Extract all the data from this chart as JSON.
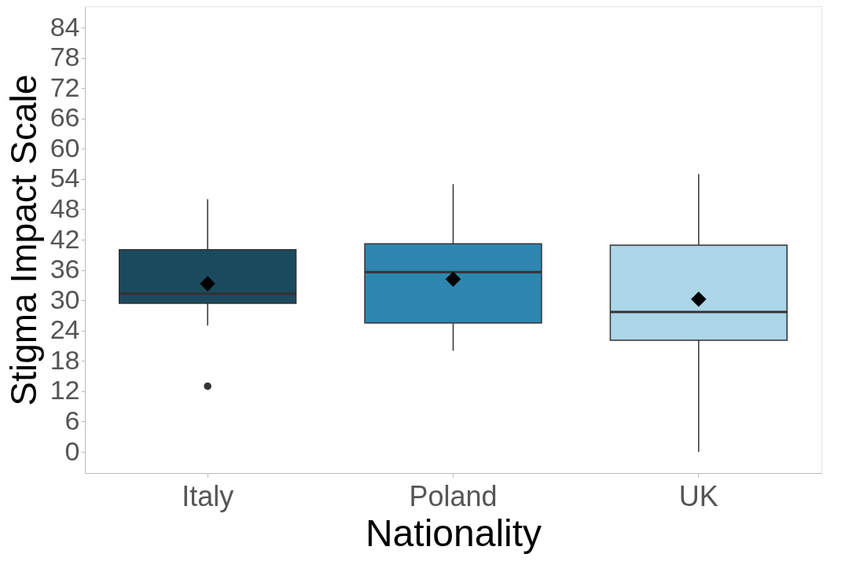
{
  "chart_data": {
    "type": "box",
    "xlabel": "Nationality",
    "ylabel": "Stigma Impact Scale",
    "categories": [
      "Italy",
      "Poland",
      "UK"
    ],
    "colors": [
      "#1b4a5e",
      "#2e86b0",
      "#acd6e8"
    ],
    "boxes": [
      {
        "low": 25,
        "q1": 29.4,
        "median": 31.3,
        "q3": 40,
        "high": 50,
        "mean": 33.3,
        "outliers": [
          13
        ]
      },
      {
        "low": 20,
        "q1": 25.5,
        "median": 35.6,
        "q3": 41.2,
        "high": 53,
        "mean": 34.2
      },
      {
        "low": 0,
        "q1": 22.1,
        "median": 27.7,
        "q3": 40.9,
        "high": 55,
        "mean": 30.2
      }
    ],
    "ylim": [
      -4.2,
      88.2
    ],
    "yticks": [
      0,
      6,
      12,
      18,
      24,
      30,
      36,
      42,
      48,
      54,
      60,
      66,
      72,
      78,
      84
    ],
    "grid": false
  }
}
